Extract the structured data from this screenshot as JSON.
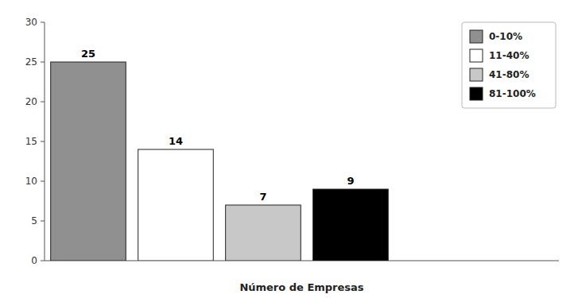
{
  "chart_data": {
    "type": "bar",
    "xlabel": "Número de Empresas",
    "categories": [
      "0-10%",
      "11-40%",
      "41-80%",
      "81-100%"
    ],
    "values": [
      25,
      14,
      7,
      9
    ],
    "colors": [
      "#909090",
      "#ffffff",
      "#c8c8c8",
      "#000000"
    ],
    "ylim": [
      0,
      30
    ],
    "yticks": [
      0,
      5,
      10,
      15,
      20,
      25,
      30
    ],
    "data_labels": true,
    "legend": "upper right",
    "tick_labels": "y"
  }
}
